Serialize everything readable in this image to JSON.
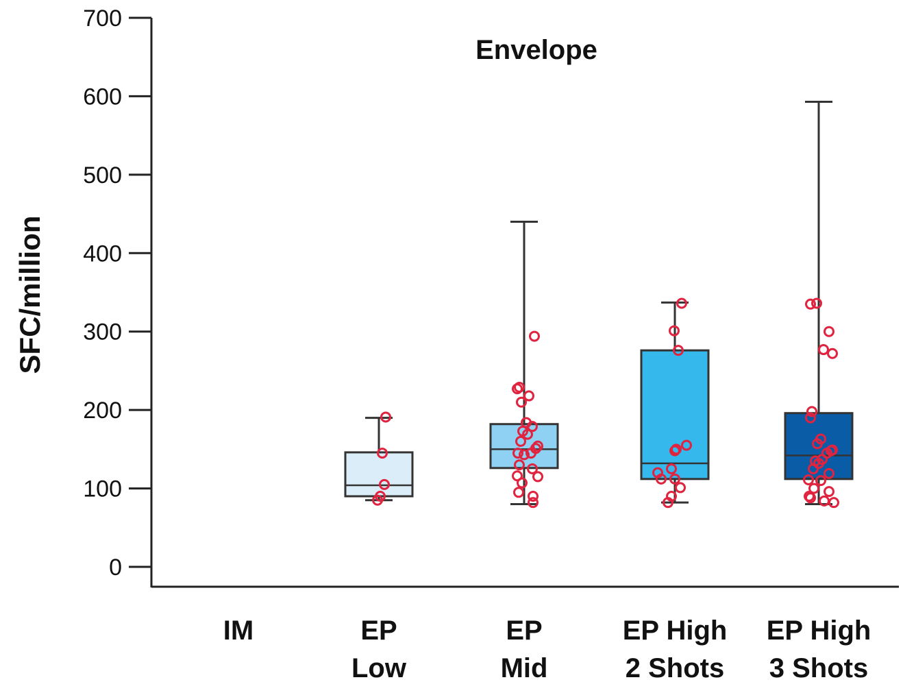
{
  "chart_data": {
    "type": "box",
    "title": "Envelope",
    "xlabel": "",
    "ylabel": "SFC/million",
    "ylim": [
      0,
      700
    ],
    "yticks": [
      0,
      100,
      200,
      300,
      400,
      500,
      600,
      700
    ],
    "grid": false,
    "legend": "none",
    "categories": [
      {
        "line1": "IM",
        "line2": ""
      },
      {
        "line1": "EP",
        "line2": "Low"
      },
      {
        "line1": "EP",
        "line2": "Mid"
      },
      {
        "line1": "EP High",
        "line2": "2 Shots"
      },
      {
        "line1": "EP High",
        "line2": "3 Shots"
      }
    ],
    "boxes": [
      null,
      {
        "min": 85,
        "q1": 90,
        "median": 104,
        "q3": 146,
        "max": 190,
        "color": "#dcedfa",
        "points": [
          [
            0.1,
            191
          ],
          [
            0.05,
            145
          ],
          [
            0.08,
            105
          ],
          [
            0.02,
            90
          ],
          [
            -0.02,
            85
          ]
        ]
      },
      {
        "min": 80,
        "q1": 126,
        "median": 150,
        "q3": 182,
        "max": 440,
        "color": "#8ed1f3",
        "points": [
          [
            0.15,
            294
          ],
          [
            -0.1,
            227
          ],
          [
            -0.07,
            229
          ],
          [
            0.07,
            218
          ],
          [
            -0.04,
            210
          ],
          [
            0.03,
            184
          ],
          [
            0.12,
            179
          ],
          [
            -0.02,
            173
          ],
          [
            0.05,
            169
          ],
          [
            -0.05,
            160
          ],
          [
            0.2,
            154
          ],
          [
            0.17,
            151
          ],
          [
            -0.09,
            145
          ],
          [
            0.0,
            143
          ],
          [
            0.1,
            145
          ],
          [
            -0.07,
            130
          ],
          [
            0.12,
            125
          ],
          [
            -0.1,
            116
          ],
          [
            0.2,
            115
          ],
          [
            -0.03,
            107
          ],
          [
            -0.08,
            95
          ],
          [
            0.13,
            90
          ],
          [
            0.13,
            82
          ]
        ]
      },
      {
        "min": 82,
        "q1": 112,
        "median": 132,
        "q3": 276,
        "max": 337,
        "color": "#35b8eb",
        "points": [
          [
            0.1,
            336
          ],
          [
            -0.01,
            301
          ],
          [
            0.05,
            276
          ],
          [
            0.17,
            155
          ],
          [
            0.0,
            148
          ],
          [
            0.02,
            150
          ],
          [
            -0.05,
            125
          ],
          [
            -0.25,
            120
          ],
          [
            -0.2,
            112
          ],
          [
            0.0,
            112
          ],
          [
            0.08,
            101
          ],
          [
            -0.05,
            90
          ],
          [
            -0.1,
            82
          ]
        ]
      },
      {
        "min": 80,
        "q1": 112,
        "median": 142,
        "q3": 196,
        "max": 593,
        "color": "#0a5ca7",
        "points": [
          [
            -0.12,
            335
          ],
          [
            -0.03,
            336
          ],
          [
            0.15,
            300
          ],
          [
            0.07,
            277
          ],
          [
            0.2,
            272
          ],
          [
            -0.1,
            198
          ],
          [
            -0.12,
            190
          ],
          [
            0.03,
            163
          ],
          [
            -0.02,
            157
          ],
          [
            0.18,
            148
          ],
          [
            0.12,
            145
          ],
          [
            0.2,
            149
          ],
          [
            -0.05,
            135
          ],
          [
            0.05,
            137
          ],
          [
            0.0,
            132
          ],
          [
            -0.08,
            125
          ],
          [
            0.15,
            119
          ],
          [
            -0.15,
            111
          ],
          [
            0.03,
            110
          ],
          [
            -0.07,
            100
          ],
          [
            0.15,
            96
          ],
          [
            -0.14,
            90
          ],
          [
            -0.12,
            88
          ],
          [
            0.08,
            84
          ],
          [
            0.22,
            82
          ]
        ]
      }
    ]
  }
}
